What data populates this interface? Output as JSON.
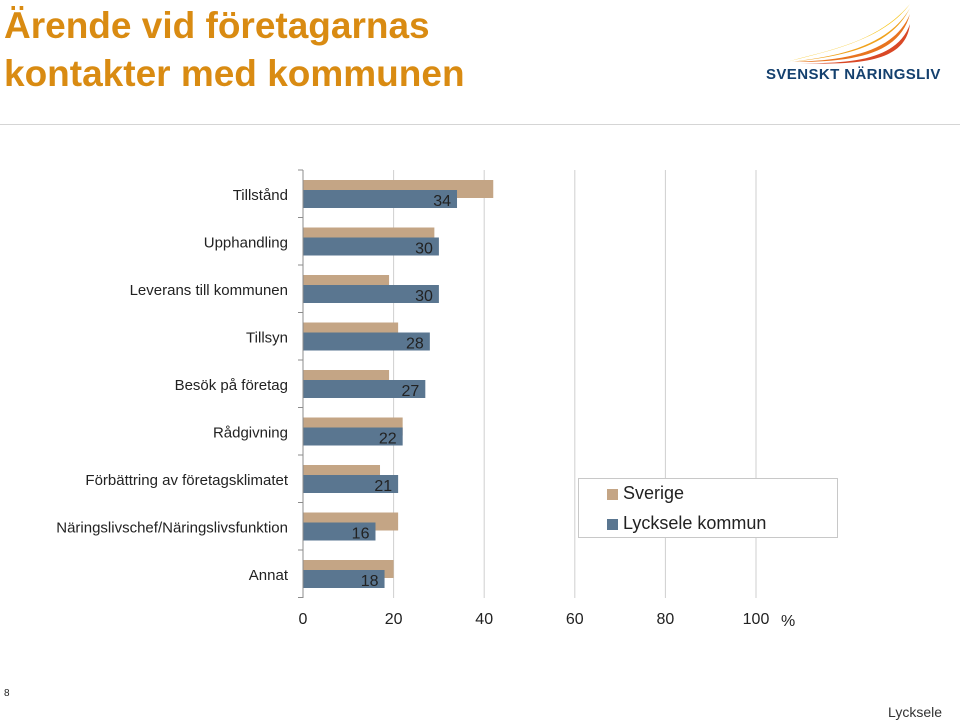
{
  "header": {
    "title_line1": "Ärende vid företagarnas",
    "title_line2": "kontakter med kommunen"
  },
  "logo": {
    "text": "SVENSKT NÄRINGSLIV",
    "flame_colors": [
      "#f6c418",
      "#f0a21c",
      "#e8741f",
      "#d94826"
    ]
  },
  "colors": {
    "sverige": "#c4a585",
    "lycksele": "#5a7690",
    "title": "#d98b12"
  },
  "chart_data": {
    "type": "bar",
    "orientation": "horizontal",
    "categories": [
      "Tillstånd",
      "Upphandling",
      "Leverans till kommunen",
      "Tillsyn",
      "Besök på företag",
      "Rådgivning",
      "Förbättring av företagsklimatet",
      "Näringslivschef/Näringslivsfunktion",
      "Annat"
    ],
    "series": [
      {
        "name": "Sverige",
        "values": [
          42,
          29,
          19,
          21,
          19,
          22,
          17,
          21,
          20
        ]
      },
      {
        "name": "Lycksele kommun",
        "values": [
          34,
          30,
          30,
          28,
          27,
          22,
          21,
          16,
          18
        ]
      }
    ],
    "data_labels_series": "Lycksele kommun",
    "xlim": [
      0,
      100
    ],
    "xticks": [
      0,
      20,
      40,
      60,
      80,
      100
    ],
    "unit": "%",
    "grid": true,
    "legend": "right"
  },
  "footer": {
    "page_number": "8",
    "text": "Lycksele"
  }
}
